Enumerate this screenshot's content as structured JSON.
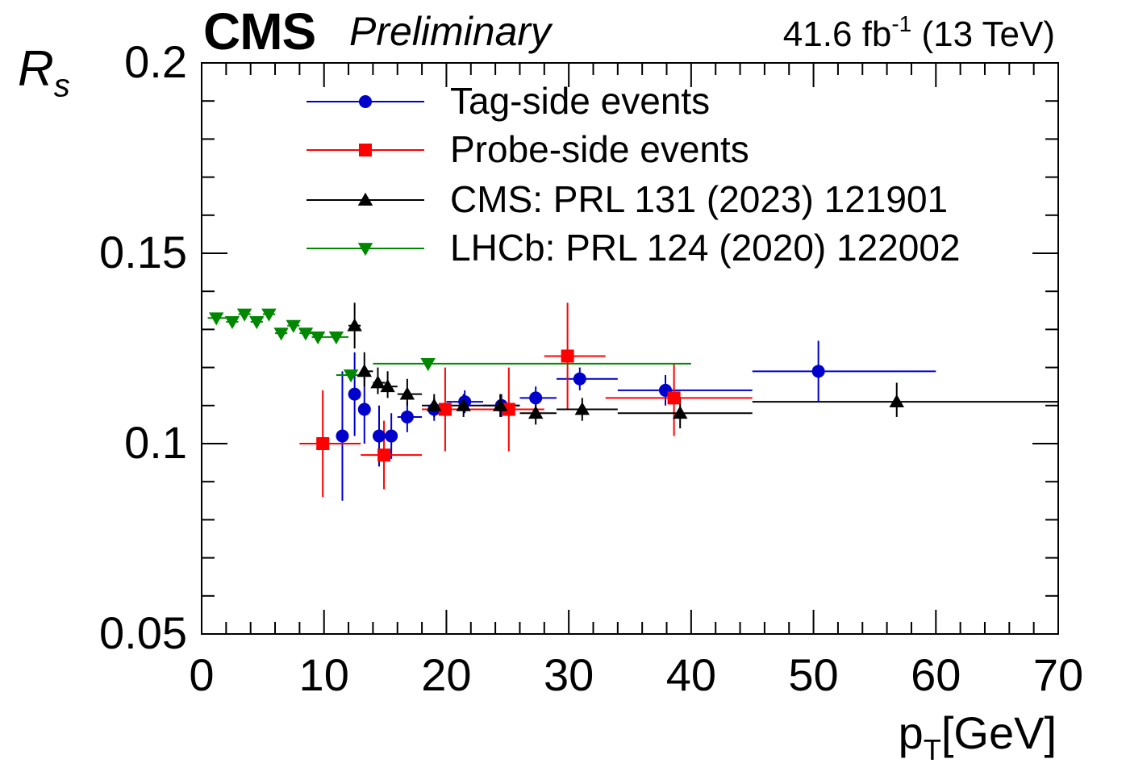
{
  "header": {
    "experiment": "CMS",
    "status": "Preliminary",
    "lumi_value": "41.6 fb",
    "lumi_exp": "-1",
    "energy": "(13 TeV)"
  },
  "chart_data": {
    "type": "scatter",
    "title": "",
    "xlabel_main": "p",
    "xlabel_sub": "T",
    "xlabel_unit": "[GeV]",
    "ylabel_main": "R",
    "ylabel_sub": "s",
    "xlim": [
      0,
      70
    ],
    "ylim": [
      0.05,
      0.2
    ],
    "x_ticks": [
      "0",
      "10",
      "20",
      "30",
      "40",
      "50",
      "60",
      "70"
    ],
    "y_ticks": [
      "0.05",
      "0.1",
      "0.15",
      "0.2"
    ],
    "legend_position": "top-center",
    "series": [
      {
        "name": "Tag-side events",
        "color": "#0000cc",
        "marker": "circle",
        "points": [
          {
            "x": 11.5,
            "y": 0.102,
            "xlo": 11.0,
            "xhi": 12.0,
            "ylo": 0.085,
            "yhi": 0.119
          },
          {
            "x": 12.5,
            "y": 0.113,
            "xlo": 12.0,
            "xhi": 13.0,
            "ylo": 0.102,
            "yhi": 0.124
          },
          {
            "x": 13.3,
            "y": 0.109,
            "xlo": 13.0,
            "xhi": 13.8,
            "ylo": 0.1,
            "yhi": 0.118
          },
          {
            "x": 14.5,
            "y": 0.102,
            "xlo": 14.0,
            "xhi": 15.0,
            "ylo": 0.094,
            "yhi": 0.11
          },
          {
            "x": 15.5,
            "y": 0.102,
            "xlo": 15.0,
            "xhi": 16.0,
            "ylo": 0.096,
            "yhi": 0.108
          },
          {
            "x": 16.8,
            "y": 0.107,
            "xlo": 16.0,
            "xhi": 18.0,
            "ylo": 0.103,
            "yhi": 0.111
          },
          {
            "x": 19.0,
            "y": 0.109,
            "xlo": 18.0,
            "xhi": 20.0,
            "ylo": 0.106,
            "yhi": 0.112
          },
          {
            "x": 21.5,
            "y": 0.111,
            "xlo": 20.0,
            "xhi": 23.0,
            "ylo": 0.108,
            "yhi": 0.114
          },
          {
            "x": 24.5,
            "y": 0.11,
            "xlo": 23.0,
            "xhi": 26.0,
            "ylo": 0.107,
            "yhi": 0.113
          },
          {
            "x": 27.3,
            "y": 0.112,
            "xlo": 26.0,
            "xhi": 29.0,
            "ylo": 0.109,
            "yhi": 0.115
          },
          {
            "x": 30.9,
            "y": 0.117,
            "xlo": 29.0,
            "xhi": 34.0,
            "ylo": 0.114,
            "yhi": 0.12
          },
          {
            "x": 37.9,
            "y": 0.114,
            "xlo": 34.0,
            "xhi": 45.0,
            "ylo": 0.11,
            "yhi": 0.118
          },
          {
            "x": 50.4,
            "y": 0.119,
            "xlo": 45.0,
            "xhi": 60.0,
            "ylo": 0.111,
            "yhi": 0.127
          }
        ]
      },
      {
        "name": "Probe-side events",
        "color": "#ff0000",
        "marker": "square",
        "points": [
          {
            "x": 9.9,
            "y": 0.1,
            "xlo": 8.0,
            "xhi": 13.0,
            "ylo": 0.086,
            "yhi": 0.114
          },
          {
            "x": 14.9,
            "y": 0.097,
            "xlo": 13.0,
            "xhi": 18.0,
            "ylo": 0.088,
            "yhi": 0.106
          },
          {
            "x": 19.9,
            "y": 0.109,
            "xlo": 18.0,
            "xhi": 22.0,
            "ylo": 0.098,
            "yhi": 0.12
          },
          {
            "x": 25.1,
            "y": 0.109,
            "xlo": 22.0,
            "xhi": 28.0,
            "ylo": 0.098,
            "yhi": 0.12
          },
          {
            "x": 29.9,
            "y": 0.123,
            "xlo": 28.0,
            "xhi": 33.0,
            "ylo": 0.109,
            "yhi": 0.137
          },
          {
            "x": 38.6,
            "y": 0.112,
            "xlo": 33.0,
            "xhi": 45.0,
            "ylo": 0.102,
            "yhi": 0.121
          }
        ]
      },
      {
        "name": "CMS: PRL 131 (2023) 121901",
        "color": "#000000",
        "marker": "triangle-up",
        "points": [
          {
            "x": 12.5,
            "y": 0.131,
            "xlo": 12.0,
            "xhi": 13.0,
            "ylo": 0.125,
            "yhi": 0.137
          },
          {
            "x": 13.3,
            "y": 0.119,
            "xlo": 13.0,
            "xhi": 14.0,
            "ylo": 0.115,
            "yhi": 0.124
          },
          {
            "x": 14.4,
            "y": 0.116,
            "xlo": 14.0,
            "xhi": 15.0,
            "ylo": 0.113,
            "yhi": 0.12
          },
          {
            "x": 15.2,
            "y": 0.115,
            "xlo": 15.0,
            "xhi": 16.0,
            "ylo": 0.112,
            "yhi": 0.119
          },
          {
            "x": 16.8,
            "y": 0.113,
            "xlo": 16.0,
            "xhi": 18.0,
            "ylo": 0.11,
            "yhi": 0.117
          },
          {
            "x": 19.0,
            "y": 0.11,
            "xlo": 18.0,
            "xhi": 20.0,
            "ylo": 0.107,
            "yhi": 0.113
          },
          {
            "x": 21.4,
            "y": 0.11,
            "xlo": 20.0,
            "xhi": 23.0,
            "ylo": 0.107,
            "yhi": 0.113
          },
          {
            "x": 24.4,
            "y": 0.11,
            "xlo": 23.0,
            "xhi": 26.0,
            "ylo": 0.107,
            "yhi": 0.113
          },
          {
            "x": 27.3,
            "y": 0.108,
            "xlo": 26.0,
            "xhi": 29.0,
            "ylo": 0.105,
            "yhi": 0.111
          },
          {
            "x": 31.1,
            "y": 0.109,
            "xlo": 29.0,
            "xhi": 34.0,
            "ylo": 0.106,
            "yhi": 0.112
          },
          {
            "x": 39.1,
            "y": 0.108,
            "xlo": 34.0,
            "xhi": 45.0,
            "ylo": 0.104,
            "yhi": 0.112
          },
          {
            "x": 56.8,
            "y": 0.111,
            "xlo": 45.0,
            "xhi": 70.0,
            "ylo": 0.107,
            "yhi": 0.116
          }
        ]
      },
      {
        "name": "LHCb: PRL 124 (2020) 122002",
        "color": "#008800",
        "marker": "triangle-down",
        "points": [
          {
            "x": 1.2,
            "y": 0.133,
            "xlo": 0.5,
            "xhi": 2.0,
            "ylo": 0.132,
            "yhi": 0.134
          },
          {
            "x": 2.5,
            "y": 0.132,
            "xlo": 2.0,
            "xhi": 3.0,
            "ylo": 0.131,
            "yhi": 0.133
          },
          {
            "x": 3.5,
            "y": 0.134,
            "xlo": 3.0,
            "xhi": 4.0,
            "ylo": 0.133,
            "yhi": 0.135
          },
          {
            "x": 4.5,
            "y": 0.132,
            "xlo": 4.0,
            "xhi": 5.0,
            "ylo": 0.131,
            "yhi": 0.133
          },
          {
            "x": 5.5,
            "y": 0.134,
            "xlo": 5.0,
            "xhi": 6.0,
            "ylo": 0.133,
            "yhi": 0.135
          },
          {
            "x": 6.5,
            "y": 0.129,
            "xlo": 6.0,
            "xhi": 7.0,
            "ylo": 0.128,
            "yhi": 0.13
          },
          {
            "x": 7.5,
            "y": 0.131,
            "xlo": 7.0,
            "xhi": 8.0,
            "ylo": 0.13,
            "yhi": 0.132
          },
          {
            "x": 8.5,
            "y": 0.129,
            "xlo": 8.0,
            "xhi": 9.0,
            "ylo": 0.128,
            "yhi": 0.13
          },
          {
            "x": 9.5,
            "y": 0.128,
            "xlo": 9.0,
            "xhi": 10.0,
            "ylo": 0.127,
            "yhi": 0.129
          },
          {
            "x": 11.0,
            "y": 0.128,
            "xlo": 10.0,
            "xhi": 12.0,
            "ylo": 0.127,
            "yhi": 0.129
          },
          {
            "x": 12.2,
            "y": 0.118,
            "xlo": 11.0,
            "xhi": 13.5,
            "ylo": 0.117,
            "yhi": 0.119
          },
          {
            "x": 18.5,
            "y": 0.121,
            "xlo": 14.0,
            "xhi": 40.0,
            "ylo": 0.12,
            "yhi": 0.122
          }
        ]
      }
    ]
  }
}
